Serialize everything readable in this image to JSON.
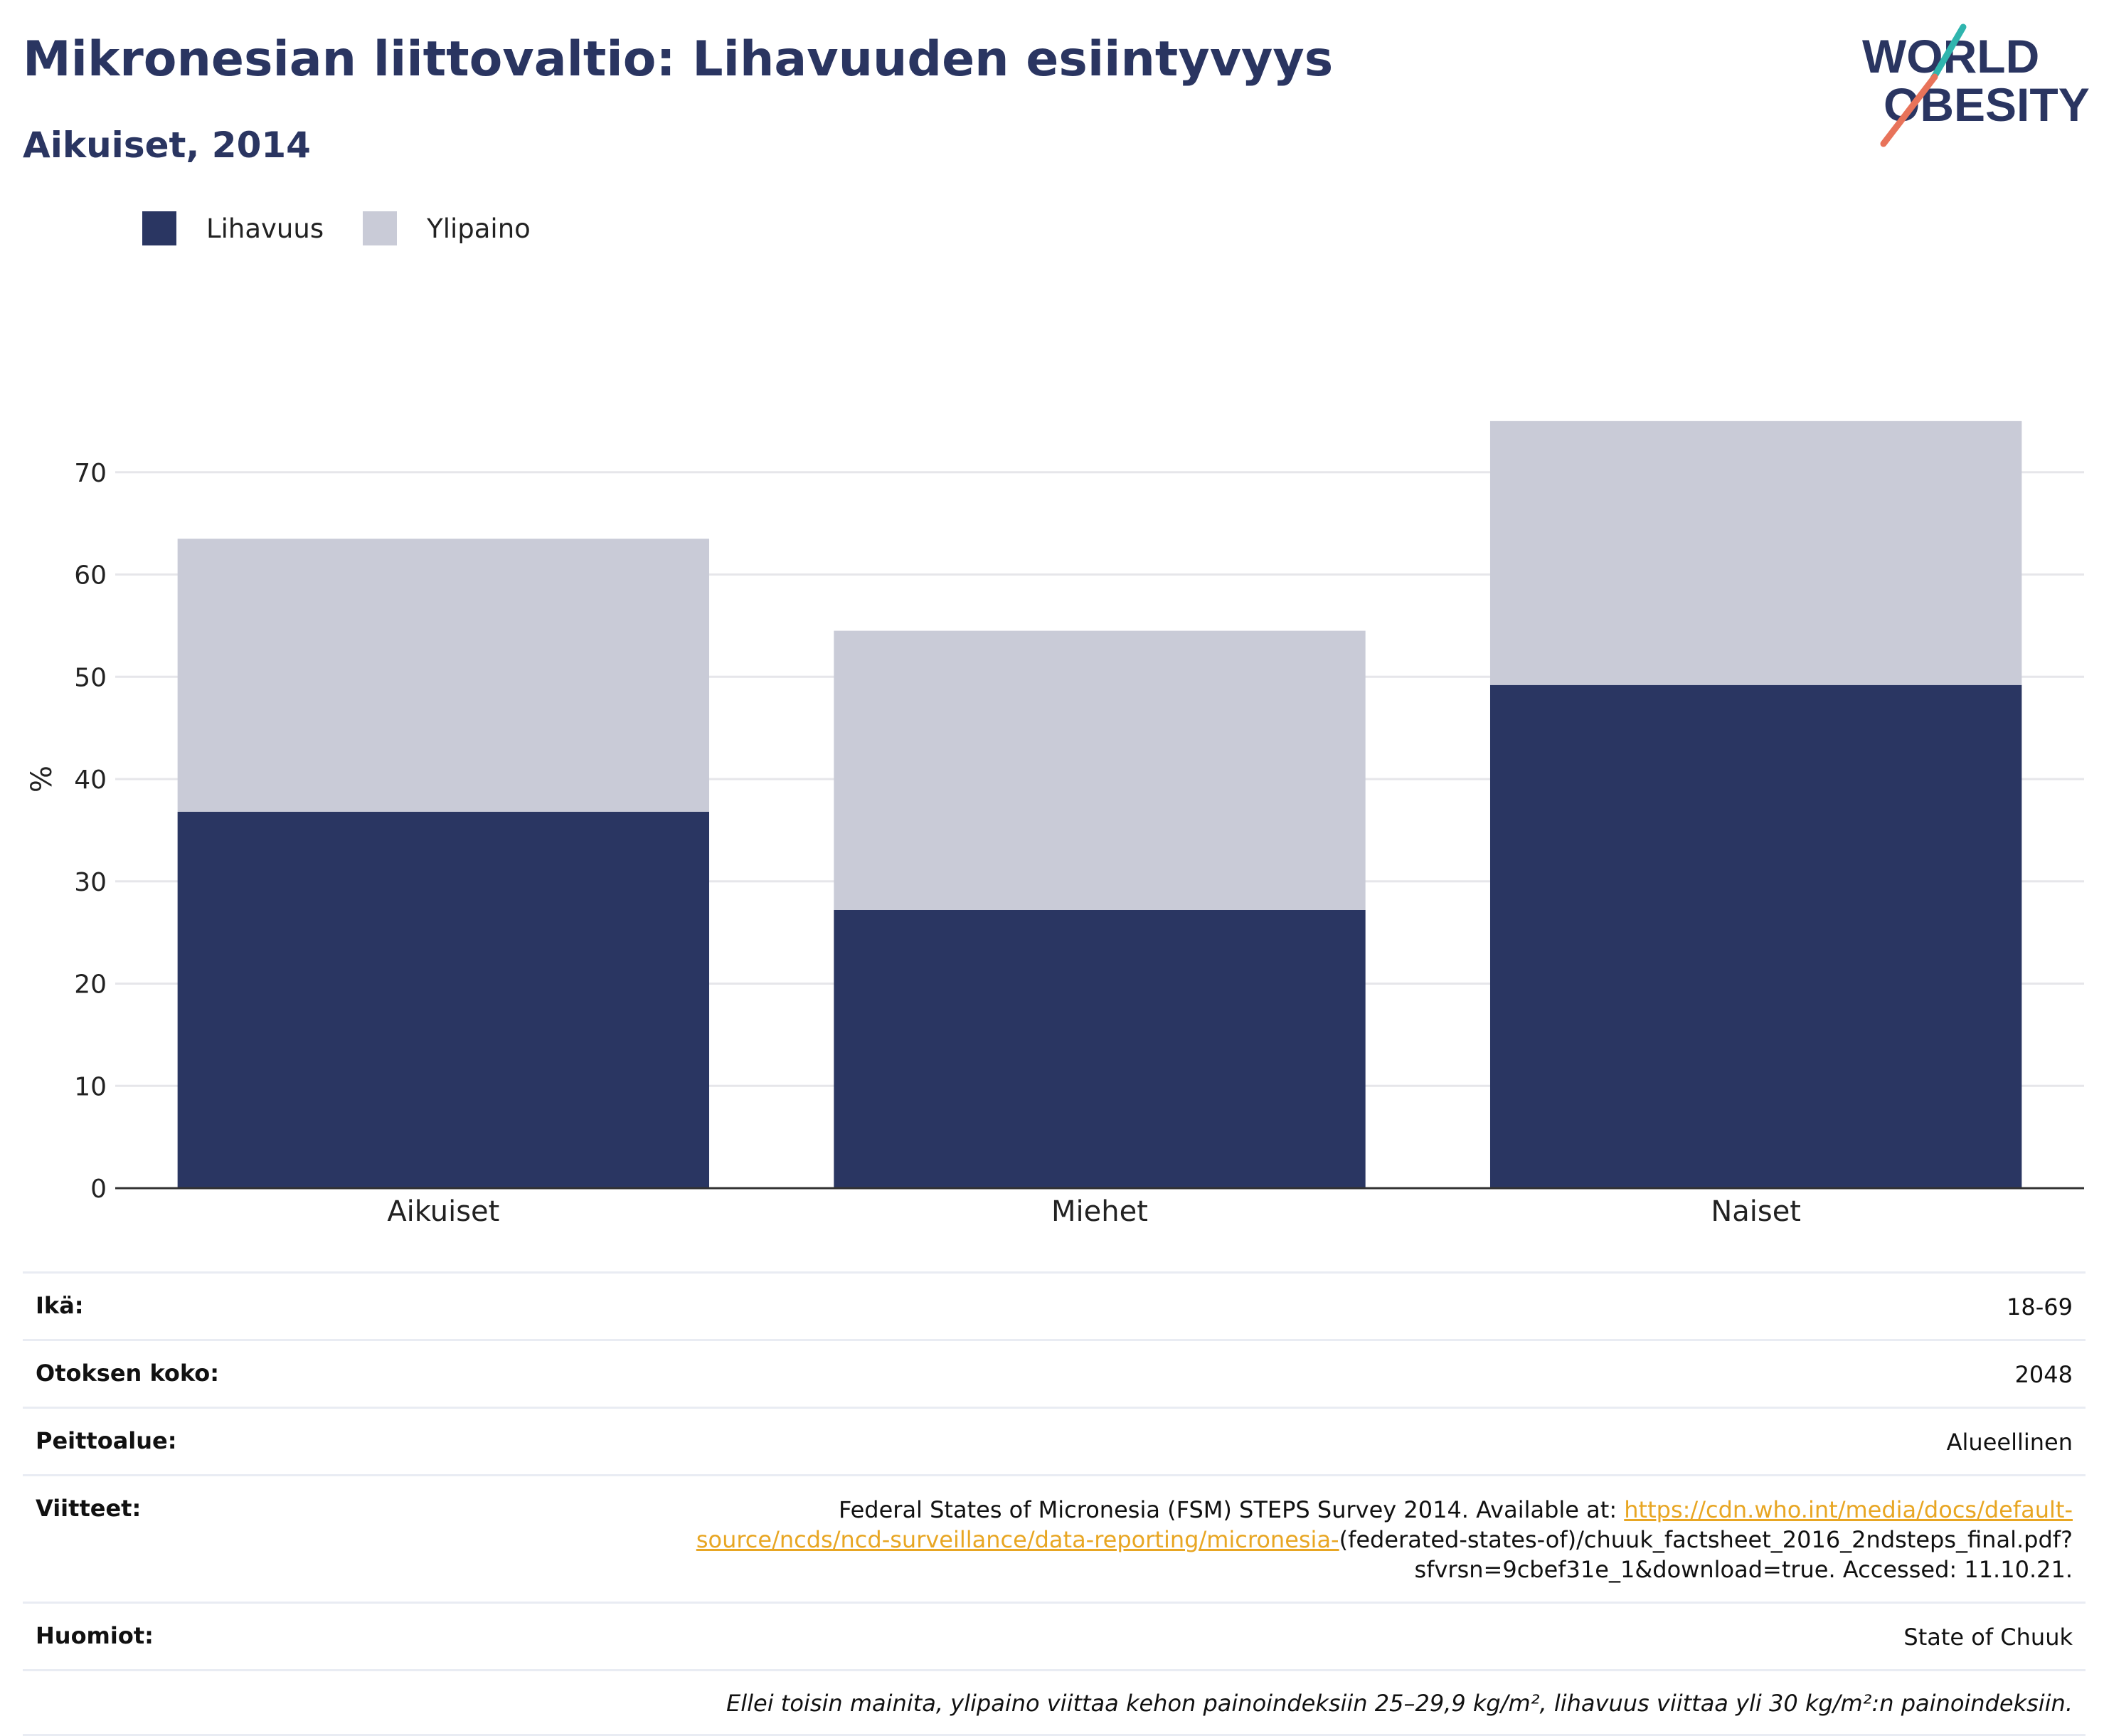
{
  "title": "Mikronesian liittovaltio: Lihavuuden esiintyvyys",
  "subtitle": "Aikuiset, 2014",
  "logo": {
    "line1": "WORLD",
    "line2": "OBESITY",
    "colors": {
      "text": "#2a3561",
      "accent_teal": "#2fb5ae",
      "accent_coral": "#e8735a"
    }
  },
  "legend": [
    {
      "label": "Lihavuus",
      "color": "#2a3662"
    },
    {
      "label": "Ylipaino",
      "color": "#c9cbd7"
    }
  ],
  "chart_data": {
    "type": "bar",
    "stacked": true,
    "categories": [
      "Aikuiset",
      "Miehet",
      "Naiset"
    ],
    "series": [
      {
        "name": "Lihavuus",
        "values": [
          36.8,
          27.2,
          49.2
        ],
        "color": "#2a3662"
      },
      {
        "name": "Ylipaino",
        "values": [
          26.7,
          27.3,
          25.8
        ],
        "color": "#c9cbd7"
      }
    ],
    "ylabel": "%",
    "xlabel": "",
    "ylim": [
      0,
      80
    ],
    "yticks": [
      0,
      10,
      20,
      30,
      40,
      50,
      60,
      70
    ],
    "grid": true
  },
  "info": {
    "age": {
      "label": "Ikä:",
      "value": "18-69"
    },
    "sample": {
      "label": "Otoksen koko:",
      "value": "2048"
    },
    "coverage": {
      "label": "Peittoalue:",
      "value": "Alueellinen"
    },
    "references": {
      "label": "Viitteet:",
      "text_before": "Federal States of Micronesia (FSM) STEPS Survey 2014. Available at: ",
      "link": "https://cdn.who.int/media/docs/default-source/ncds/ncd-surveillance/data-reporting/micronesia-",
      "text_after": "(federated-states-of)/chuuk_factsheet_2016_2ndsteps_final.pdf?sfvrsn=9cbef31e_1&download=true. Accessed: 11.10.21."
    },
    "notes": {
      "label": "Huomiot:",
      "value": "State of Chuuk"
    },
    "footnote": "Ellei toisin mainita, ylipaino viittaa kehon painoindeksiin 25–29,9 kg/m², lihavuus viittaa yli 30 kg/m²:n painoindeksiin."
  }
}
